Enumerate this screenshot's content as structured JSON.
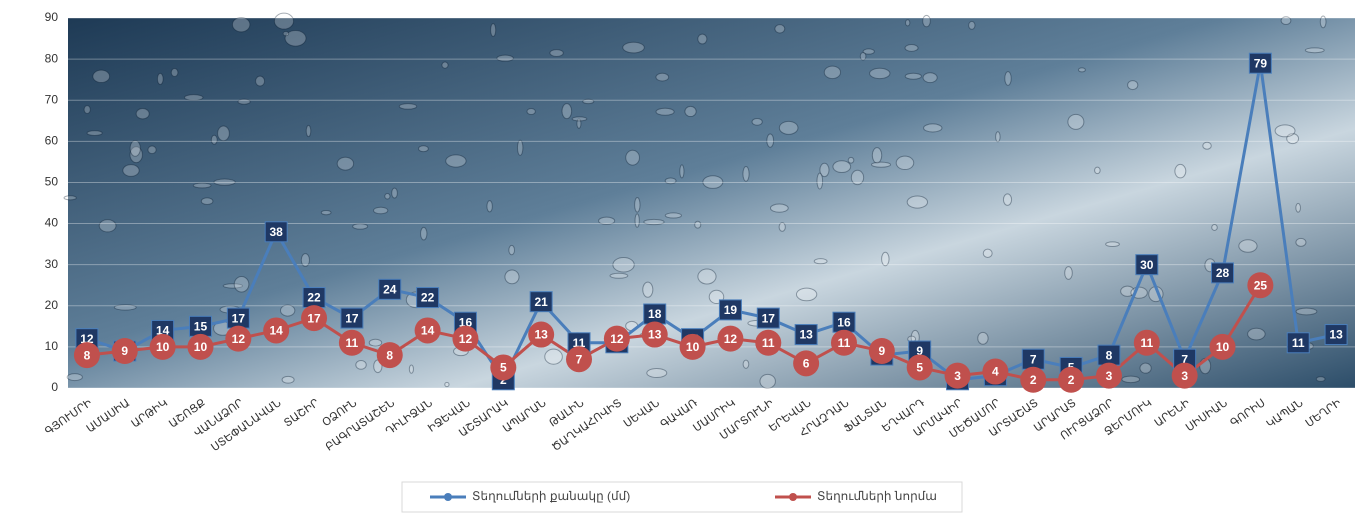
{
  "chart_data": {
    "type": "line",
    "categories": [
      "ԳՅՈՒՄՐԻ",
      "ԱՄԱՍԻԱ",
      "ԱՐԹԻԿ",
      "ԱՇՈՑՔ",
      "ՎԱՆԱՁՈՐ",
      "ՍՏԵՓԱՆԱՎԱՆ",
      "ՏԱՇԻՐ",
      "ՕՁՈՒՆ",
      "ԲԱԳՐԱՏԱՇԵՆ",
      "ԴԻԼԻՋԱՆ",
      "ԻՋԵՎԱՆ",
      "ԱՇՏԱՐԱԿ",
      "ԱՊԱՐԱՆ",
      "ԹԱԼԻՆ",
      "ԾԱՂԿԱՀՈՎԻՏ",
      "ՍԵՎԱՆ",
      "ԳԱՎԱՌ",
      "ՄԱՍՐԻԿ",
      "ՄԱՐՏՈՒՆԻ",
      "ԵՐԵՎԱՆ",
      "ՀՐԱԶԴԱՆ",
      "ՖԱՆՏԱՆ",
      "ԵՂՎԱՐԴ",
      "ԱՐՄԱՎԻՐ",
      "ՄԵԾԱՄՈՐ",
      "ԱՐՏԱՇԱՏ",
      "ԱՐԱՐԱՏ",
      "ՈՒՐՑԱՁՈՐ",
      "ՋԵՐՄՈՒԿ",
      "ԱՐԵՆԻ",
      "ՍԻՍԻԱՆ",
      "ԳՈՐԻՍ",
      "ԿԱՊԱՆ",
      "ՄԵՂՐԻ"
    ],
    "series": [
      {
        "name": "Տեղումների քանակը (մմ)",
        "color": "#4a7ebb",
        "values": [
          12,
          9,
          14,
          15,
          17,
          38,
          22,
          17,
          24,
          22,
          16,
          2,
          21,
          11,
          11,
          18,
          12,
          19,
          17,
          13,
          16,
          8,
          9,
          2,
          3,
          7,
          5,
          8,
          30,
          7,
          28,
          79,
          11,
          13
        ]
      },
      {
        "name": "Տեղումների նորմա",
        "color": "#c0504d",
        "values": [
          8,
          9,
          10,
          10,
          12,
          14,
          17,
          11,
          8,
          14,
          12,
          5,
          13,
          7,
          12,
          13,
          10,
          12,
          11,
          6,
          11,
          9,
          5,
          3,
          4,
          2,
          2,
          3,
          11,
          3,
          10,
          25,
          null,
          null
        ]
      }
    ],
    "ylim": [
      0,
      90
    ],
    "yticks": [
      0,
      10,
      20,
      30,
      40,
      50,
      60,
      70,
      80,
      90
    ],
    "grid": true
  }
}
